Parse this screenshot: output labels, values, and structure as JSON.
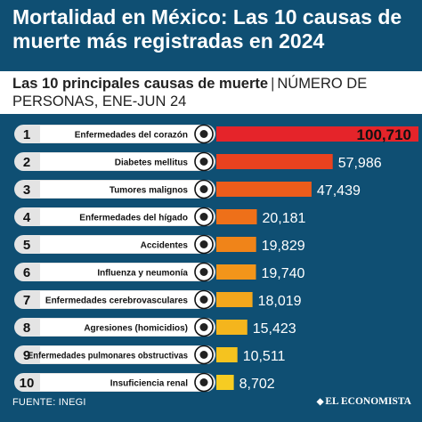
{
  "header": {
    "title": "Mortalidad en México: Las 10 causas de muerte más registradas en 2024",
    "subtitle_strong": "Las 10 principales causas de muerte",
    "subtitle_sep": "|",
    "subtitle_rest": "NÚMERO DE PERSONAS, ENE-JUN 24"
  },
  "footer": {
    "source": "FUENTE: INEGI",
    "logo_text": "EL ECONOMISTA"
  },
  "colors": {
    "background": "#0f4f73",
    "rank_pill": "#e4e4e4",
    "label_band": "#ffffff",
    "bar_gradient": [
      "#e5242a",
      "#e8421f",
      "#ec5c1b",
      "#ee7019",
      "#f08419",
      "#f2951a",
      "#f3a71c",
      "#f4b51d",
      "#f5c31f",
      "#f6cc22"
    ]
  },
  "chart_data": {
    "type": "bar",
    "orientation": "horizontal",
    "categories": [
      "Enfermedades del corazón",
      "Diabetes mellitus",
      "Tumores malignos",
      "Enfermedades del hígado",
      "Accidentes",
      "Influenza y neumonía",
      "Enfermedades cerebrovasculares",
      "Agresiones (homicidios)",
      "Enfermedades pulmonares obstructivas",
      "Insuficiencia renal"
    ],
    "ranks": [
      "1",
      "2",
      "3",
      "4",
      "5",
      "6",
      "7",
      "8",
      "9",
      "10"
    ],
    "values": [
      100710,
      57986,
      47439,
      20181,
      19829,
      19740,
      18019,
      15423,
      10511,
      8702
    ],
    "value_labels": [
      "100,710",
      "57,986",
      "47,439",
      "20,181",
      "19,829",
      "19,740",
      "18,019",
      "15,423",
      "10,511",
      "8,702"
    ],
    "icons": [
      "heart-icon",
      "glucometer-icon",
      "tumor-cell-icon",
      "liver-icon",
      "car-crash-icon",
      "virus-person-icon",
      "brain-icon",
      "pistol-icon",
      "lungs-icon",
      "kidney-icon"
    ],
    "xlim": [
      0,
      100710
    ],
    "grid": false,
    "legend": "none"
  }
}
